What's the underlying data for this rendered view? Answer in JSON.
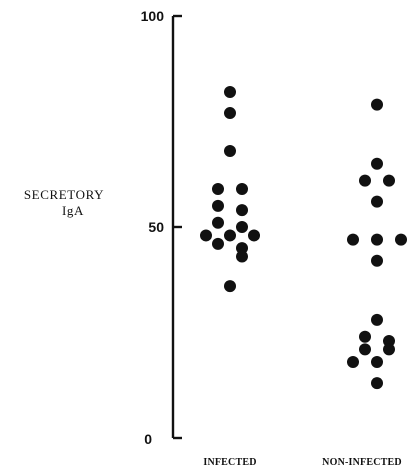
{
  "chart_data": {
    "type": "scatter",
    "title": "",
    "xlabel": "",
    "ylabel": [
      "SECRETORY",
      "IgA"
    ],
    "categories": [
      "INFECTED",
      "NON-INFECTED"
    ],
    "ylim": [
      0,
      100
    ],
    "yticks": [
      {
        "value": 0,
        "label": "0"
      },
      {
        "value": 50,
        "label": "50"
      },
      {
        "value": 100,
        "label": "100"
      }
    ],
    "grid": false,
    "legend": "none",
    "series": [
      {
        "category": "INFECTED",
        "points": [
          {
            "y": 82,
            "offset": 0
          },
          {
            "y": 77,
            "offset": 0
          },
          {
            "y": 68,
            "offset": 0
          },
          {
            "y": 59,
            "offset": -1
          },
          {
            "y": 59,
            "offset": 1
          },
          {
            "y": 55,
            "offset": -1
          },
          {
            "y": 54,
            "offset": 1
          },
          {
            "y": 51,
            "offset": -1
          },
          {
            "y": 50,
            "offset": 1
          },
          {
            "y": 48,
            "offset": -2
          },
          {
            "y": 48,
            "offset": 0
          },
          {
            "y": 48,
            "offset": 2
          },
          {
            "y": 46,
            "offset": -1
          },
          {
            "y": 45,
            "offset": 1
          },
          {
            "y": 43,
            "offset": 1
          },
          {
            "y": 36,
            "offset": 0
          }
        ]
      },
      {
        "category": "NON-INFECTED",
        "points": [
          {
            "y": 79,
            "offset": 0
          },
          {
            "y": 65,
            "offset": 0
          },
          {
            "y": 61,
            "offset": -1
          },
          {
            "y": 61,
            "offset": 1
          },
          {
            "y": 56,
            "offset": 0
          },
          {
            "y": 47,
            "offset": -2
          },
          {
            "y": 47,
            "offset": 0
          },
          {
            "y": 47,
            "offset": 2
          },
          {
            "y": 42,
            "offset": 0
          },
          {
            "y": 28,
            "offset": 0
          },
          {
            "y": 24,
            "offset": -1
          },
          {
            "y": 23,
            "offset": 1
          },
          {
            "y": 21,
            "offset": -1
          },
          {
            "y": 21,
            "offset": 1
          },
          {
            "y": 18,
            "offset": -2
          },
          {
            "y": 18,
            "offset": 0
          },
          {
            "y": 13,
            "offset": 0
          }
        ]
      }
    ],
    "marker_color": "#111111"
  }
}
